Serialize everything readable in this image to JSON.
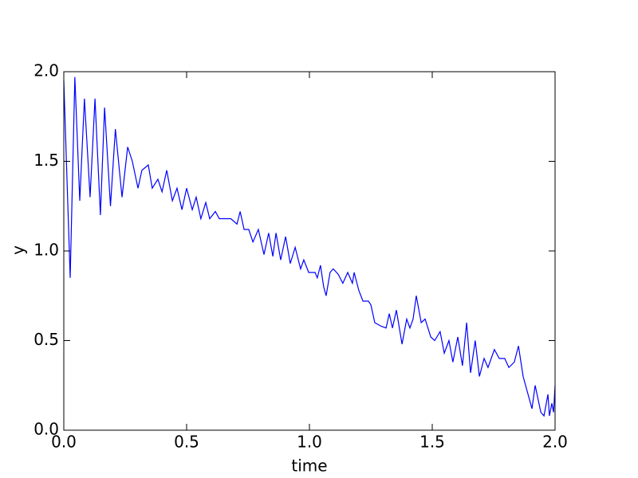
{
  "chart_data": {
    "type": "line",
    "x_label": "time",
    "y_label": "y",
    "x": [
      0,
      0.026,
      0.045,
      0.065,
      0.084,
      0.107,
      0.127,
      0.149,
      0.166,
      0.19,
      0.21,
      0.237,
      0.26,
      0.279,
      0.302,
      0.318,
      0.344,
      0.36,
      0.383,
      0.4,
      0.419,
      0.442,
      0.461,
      0.481,
      0.5,
      0.523,
      0.539,
      0.558,
      0.578,
      0.594,
      0.617,
      0.633,
      0.68,
      0.705,
      0.718,
      0.734,
      0.753,
      0.77,
      0.792,
      0.815,
      0.834,
      0.851,
      0.864,
      0.883,
      0.903,
      0.922,
      0.942,
      0.964,
      0.977,
      0.997,
      1.023,
      1.032,
      1.045,
      1.058,
      1.068,
      1.084,
      1.097,
      1.117,
      1.136,
      1.156,
      1.175,
      1.182,
      1.201,
      1.218,
      1.24,
      1.25,
      1.266,
      1.292,
      1.312,
      1.325,
      1.338,
      1.354,
      1.377,
      1.396,
      1.409,
      1.422,
      1.435,
      1.455,
      1.471,
      1.494,
      1.51,
      1.532,
      1.549,
      1.568,
      1.584,
      1.604,
      1.623,
      1.64,
      1.656,
      1.675,
      1.692,
      1.711,
      1.727,
      1.753,
      1.773,
      1.795,
      1.812,
      1.834,
      1.851,
      1.87,
      1.906,
      1.919,
      1.942,
      1.955,
      1.971,
      1.977,
      1.987,
      1.994,
      2.0
    ],
    "series": [
      {
        "color": "#0000ff",
        "values": [
          1.95,
          0.85,
          1.97,
          1.28,
          1.85,
          1.3,
          1.85,
          1.2,
          1.8,
          1.25,
          1.68,
          1.3,
          1.58,
          1.5,
          1.35,
          1.45,
          1.48,
          1.35,
          1.4,
          1.33,
          1.45,
          1.28,
          1.35,
          1.23,
          1.35,
          1.23,
          1.3,
          1.18,
          1.27,
          1.18,
          1.22,
          1.18,
          1.18,
          1.15,
          1.22,
          1.12,
          1.12,
          1.05,
          1.12,
          0.98,
          1.1,
          0.97,
          1.1,
          0.95,
          1.08,
          0.93,
          1.02,
          0.9,
          0.95,
          0.88,
          0.88,
          0.85,
          0.92,
          0.8,
          0.75,
          0.88,
          0.9,
          0.87,
          0.82,
          0.88,
          0.82,
          0.88,
          0.78,
          0.72,
          0.72,
          0.7,
          0.6,
          0.58,
          0.57,
          0.65,
          0.57,
          0.67,
          0.48,
          0.62,
          0.57,
          0.62,
          0.75,
          0.6,
          0.62,
          0.52,
          0.5,
          0.55,
          0.43,
          0.5,
          0.38,
          0.52,
          0.36,
          0.6,
          0.32,
          0.5,
          0.3,
          0.4,
          0.35,
          0.45,
          0.4,
          0.4,
          0.35,
          0.38,
          0.47,
          0.3,
          0.12,
          0.25,
          0.1,
          0.08,
          0.2,
          0.08,
          0.15,
          0.1,
          0.25
        ]
      }
    ],
    "xlim": [
      0,
      2
    ],
    "ylim": [
      0,
      2
    ],
    "xticks": [
      {
        "value": 0,
        "label": "0.0"
      },
      {
        "value": 0.5,
        "label": "0.5"
      },
      {
        "value": 1,
        "label": "1.0"
      },
      {
        "value": 1.5,
        "label": "1.5"
      },
      {
        "value": 2,
        "label": "2.0"
      }
    ],
    "yticks": [
      {
        "value": 0,
        "label": "0.0"
      },
      {
        "value": 0.5,
        "label": "0.5"
      },
      {
        "value": 1,
        "label": "1.0"
      },
      {
        "value": 1.5,
        "label": "1.5"
      },
      {
        "value": 2,
        "label": "2.0"
      }
    ],
    "grid": false
  }
}
